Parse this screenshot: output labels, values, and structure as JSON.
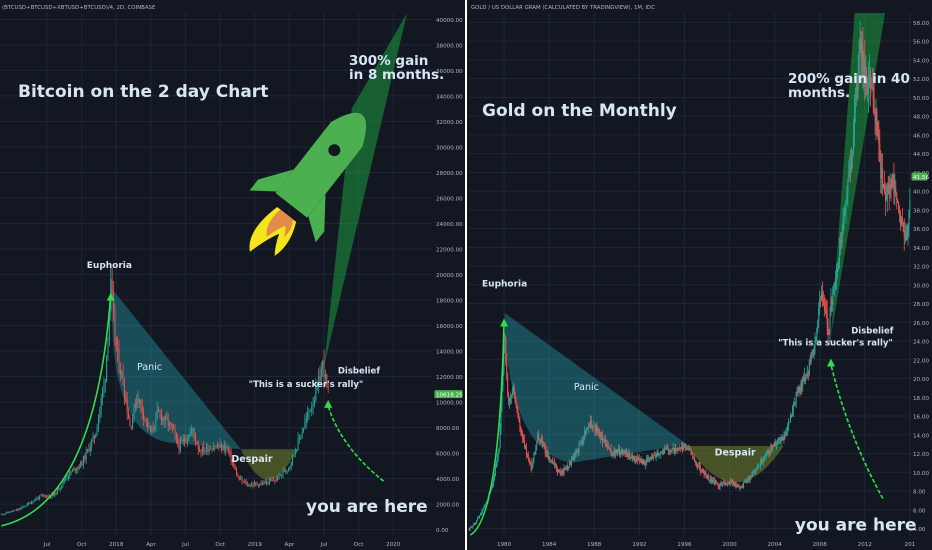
{
  "colors": {
    "background": "#131722",
    "grid": "#1e2638",
    "axis_text": "#b2b5be",
    "up": "#26a69a",
    "down": "#ef5350",
    "price_marker": "#4caf50",
    "divider": "#ffffff",
    "annotation_text": "#d7e6f5",
    "arrow_green": "#2ee04a",
    "cone_green": "#1b9a3e",
    "cone_teal": "#26b4bf",
    "cone_olive": "#6b7a2c"
  },
  "chart_data": [
    {
      "type": "candlestick",
      "header": "(BTCUSD+BTCUSD+XBTUSD+BTCUSD)/4, 2D, COINBASE",
      "title": "Bitcoin on the 2 day Chart",
      "gain_label": [
        "300% gain",
        "in 8 months."
      ],
      "y_axis_side": "right",
      "ylim": [
        -500,
        40500
      ],
      "y_ticks": [
        "0.00",
        "2000.00",
        "4000.00",
        "6000.00",
        "8000.00",
        "10000.00",
        "12000.00",
        "14000.00",
        "16000.00",
        "18000.00",
        "20000.00",
        "22000.00",
        "24000.00",
        "26000.00",
        "28000.00",
        "30000.00",
        "32000.00",
        "34000.00",
        "36000.00",
        "38000.00",
        "40000.00"
      ],
      "y_tick_values": [
        0,
        2000,
        4000,
        6000,
        8000,
        10000,
        12000,
        14000,
        16000,
        18000,
        20000,
        22000,
        24000,
        26000,
        28000,
        30000,
        32000,
        34000,
        36000,
        38000,
        40000
      ],
      "current_price_label": "10618.25",
      "current_price": 10618.25,
      "x_ticks": [
        "Jul",
        "Oct",
        "2018",
        "Apr",
        "Jul",
        "Oct",
        "2019",
        "Apr",
        "Jul",
        "Oct",
        "2020"
      ],
      "x_tick_values": [
        2017.5,
        2017.75,
        2018.0,
        2018.25,
        2018.5,
        2018.75,
        2019.0,
        2019.25,
        2019.5,
        2019.75,
        2020.0
      ],
      "xlim": [
        2017.16,
        2020.28
      ],
      "price_path": [
        [
          2017.17,
          1200
        ],
        [
          2017.3,
          1600
        ],
        [
          2017.45,
          2600
        ],
        [
          2017.55,
          2700
        ],
        [
          2017.65,
          4300
        ],
        [
          2017.75,
          5200
        ],
        [
          2017.85,
          7500
        ],
        [
          2017.92,
          12000
        ],
        [
          2017.96,
          19000
        ],
        [
          2018.0,
          14000
        ],
        [
          2018.05,
          11500
        ],
        [
          2018.1,
          8000
        ],
        [
          2018.15,
          10500
        ],
        [
          2018.25,
          7500
        ],
        [
          2018.3,
          9200
        ],
        [
          2018.4,
          8000
        ],
        [
          2018.45,
          6500
        ],
        [
          2018.55,
          7800
        ],
        [
          2018.6,
          6200
        ],
        [
          2018.7,
          6500
        ],
        [
          2018.8,
          6400
        ],
        [
          2018.88,
          4000
        ],
        [
          2018.95,
          3500
        ],
        [
          2019.05,
          3600
        ],
        [
          2019.15,
          3900
        ],
        [
          2019.25,
          5000
        ],
        [
          2019.35,
          8000
        ],
        [
          2019.45,
          11000
        ],
        [
          2019.49,
          13000
        ],
        [
          2019.53,
          10600
        ]
      ],
      "annotations": [
        {
          "label": "Euphoria",
          "x": 2017.95,
          "y": 20500
        },
        {
          "label": "Panic",
          "x": 2018.24,
          "y": 12500
        },
        {
          "label": "Despair",
          "x": 2018.98,
          "y": 5300
        },
        {
          "label": "Disbelief",
          "x": 2019.6,
          "y": 12250
        },
        {
          "label": "\"This is a sucker's rally\"",
          "x": 2019.37,
          "y": 11200
        },
        {
          "label": "you are here",
          "x": 2019.37,
          "y": 1400
        }
      ]
    },
    {
      "type": "candlestick",
      "header": "GOLD / US DOLLAR GRAM (CALCULATED BY TRADINGVIEW), 1M, IDC",
      "title": "Gold on the Monthly",
      "gain_label": [
        "200% gain in 40",
        "months."
      ],
      "y_axis_side": "right",
      "ylim": [
        3.2,
        59
      ],
      "y_ticks": [
        "4.00",
        "6.00",
        "8.00",
        "10.00",
        "12.00",
        "14.00",
        "16.00",
        "18.00",
        "20.00",
        "22.00",
        "24.00",
        "26.00",
        "28.00",
        "30.00",
        "32.00",
        "34.00",
        "36.00",
        "38.00",
        "40.00",
        "42.00",
        "44.00",
        "46.00",
        "48.00",
        "50.00",
        "52.00",
        "54.00",
        "56.00",
        "58.00"
      ],
      "y_tick_values": [
        4,
        6,
        8,
        10,
        12,
        14,
        16,
        18,
        20,
        22,
        24,
        26,
        28,
        30,
        32,
        34,
        36,
        38,
        40,
        42,
        44,
        46,
        48,
        50,
        52,
        54,
        56,
        58
      ],
      "current_price_label": "41.56",
      "current_price": 41.56,
      "x_ticks": [
        "1980",
        "1984",
        "1988",
        "1992",
        "1996",
        "2000",
        "2004",
        "2008",
        "2012",
        "201"
      ],
      "x_tick_values": [
        1980,
        1984,
        1988,
        1992,
        1996,
        2000,
        2004,
        2008,
        2012,
        2016
      ],
      "xlim": [
        1976.8,
        2016.1
      ],
      "price_path": [
        [
          1976.9,
          3.9
        ],
        [
          1977.5,
          4.7
        ],
        [
          1978.3,
          6.5
        ],
        [
          1979.0,
          8.5
        ],
        [
          1979.6,
          13
        ],
        [
          1980.05,
          25
        ],
        [
          1980.35,
          17
        ],
        [
          1980.8,
          19
        ],
        [
          1981.5,
          14
        ],
        [
          1982.4,
          10.5
        ],
        [
          1983.0,
          14
        ],
        [
          1984.0,
          11.5
        ],
        [
          1985.0,
          9.8
        ],
        [
          1986.2,
          11.5
        ],
        [
          1987.6,
          15.3
        ],
        [
          1988.5,
          14
        ],
        [
          1989.5,
          12
        ],
        [
          1990.5,
          12.3
        ],
        [
          1991.5,
          11.5
        ],
        [
          1992.5,
          11
        ],
        [
          1993.5,
          12
        ],
        [
          1994.5,
          12.5
        ],
        [
          1995.5,
          12.3
        ],
        [
          1996.2,
          12.8
        ],
        [
          1997.0,
          11
        ],
        [
          1998.0,
          9.5
        ],
        [
          1999.0,
          8.6
        ],
        [
          2000.0,
          9
        ],
        [
          2001.0,
          8.4
        ],
        [
          2002.0,
          9.8
        ],
        [
          2003.0,
          11.5
        ],
        [
          2004.0,
          13
        ],
        [
          2005.0,
          14
        ],
        [
          2006.0,
          18.5
        ],
        [
          2007.0,
          21
        ],
        [
          2007.6,
          24
        ],
        [
          2008.0,
          29
        ],
        [
          2008.5,
          28
        ],
        [
          2008.8,
          24
        ],
        [
          2009.0,
          28
        ],
        [
          2009.5,
          31
        ],
        [
          2010.0,
          36
        ],
        [
          2010.5,
          40
        ],
        [
          2011.0,
          46
        ],
        [
          2011.5,
          54
        ],
        [
          2011.7,
          56
        ],
        [
          2012.0,
          52
        ],
        [
          2012.5,
          51
        ],
        [
          2013.0,
          48
        ],
        [
          2013.3,
          43
        ],
        [
          2013.8,
          40
        ],
        [
          2014.5,
          41
        ],
        [
          2015.0,
          38
        ],
        [
          2015.7,
          34.5
        ],
        [
          2016.0,
          38
        ]
      ],
      "annotations": [
        {
          "label": "Euphoria",
          "x": 1980.05,
          "y": 29.8
        },
        {
          "label": "Panic",
          "x": 1987.3,
          "y": 18.8
        },
        {
          "label": "Despair",
          "x": 2000.5,
          "y": 11.8
        },
        {
          "label": "Disbelief",
          "x": 2010.8,
          "y": 24.8
        },
        {
          "label": "\"This is a sucker's rally\"",
          "x": 2009.4,
          "y": 23.5
        },
        {
          "label": "you are here",
          "x": 2005.8,
          "y": 3.8
        }
      ]
    }
  ]
}
